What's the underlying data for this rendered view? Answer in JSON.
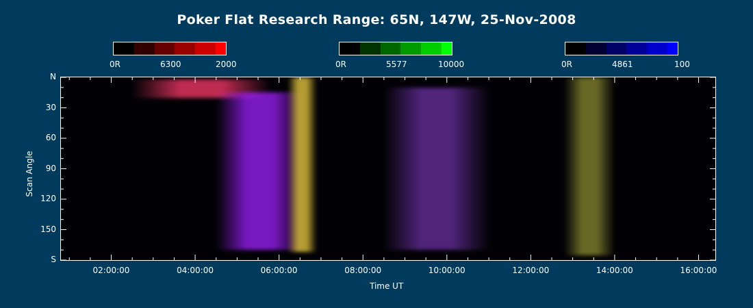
{
  "chart_data": {
    "type": "heatmap",
    "title": "Poker Flat Research Range: 65N, 147W, 25-Nov-2008",
    "xlabel": "Time UT",
    "ylabel": "Scan Angle",
    "x_ticks": [
      "02:00:00",
      "04:00:00",
      "06:00:00",
      "08:00:00",
      "10:00:00",
      "12:00:00",
      "14:00:00",
      "16:00:00"
    ],
    "x_tick_values_hours": [
      2,
      4,
      6,
      8,
      10,
      12,
      14,
      16
    ],
    "xlim_hours": [
      0.8,
      16.4
    ],
    "y_ticks": [
      "N",
      "30",
      "60",
      "90",
      "120",
      "150",
      "S"
    ],
    "y_tick_values": [
      0,
      30,
      60,
      90,
      120,
      150,
      180
    ],
    "ylim": [
      0,
      180
    ],
    "colorbars": [
      {
        "channel": "red",
        "wavelength": "6300",
        "min_label": "0R",
        "max_label": "2000",
        "color": "#ff0000"
      },
      {
        "channel": "green",
        "wavelength": "5577",
        "min_label": "0R",
        "max_label": "10000",
        "color": "#00ff00"
      },
      {
        "channel": "blue",
        "wavelength": "4861",
        "min_label": "0R",
        "max_label": "100",
        "color": "#0000ff"
      }
    ],
    "features": [
      {
        "name": "red-arc",
        "start_hour": 2.5,
        "end_hour": 5.8,
        "angle_min": 2,
        "angle_max": 20,
        "color": "#ff3a6a"
      },
      {
        "name": "descending-arc",
        "start_hour": 4.5,
        "end_hour": 6.6,
        "angle_min": 15,
        "angle_max": 170,
        "color": "#a020ff"
      },
      {
        "name": "breakup-green",
        "start_hour": 6.2,
        "end_hour": 6.9,
        "angle_min": 0,
        "angle_max": 172,
        "color": "#f0d040"
      },
      {
        "name": "diffuse-purple",
        "start_hour": 8.5,
        "end_hour": 11.0,
        "angle_min": 10,
        "angle_max": 170,
        "color": "#6a30a0"
      },
      {
        "name": "morning-green",
        "start_hour": 12.8,
        "end_hour": 14.0,
        "angle_min": 0,
        "angle_max": 175,
        "color": "#8a8a30"
      }
    ]
  },
  "colors": {
    "background": "#003a5c",
    "axis": "#ffffff"
  }
}
